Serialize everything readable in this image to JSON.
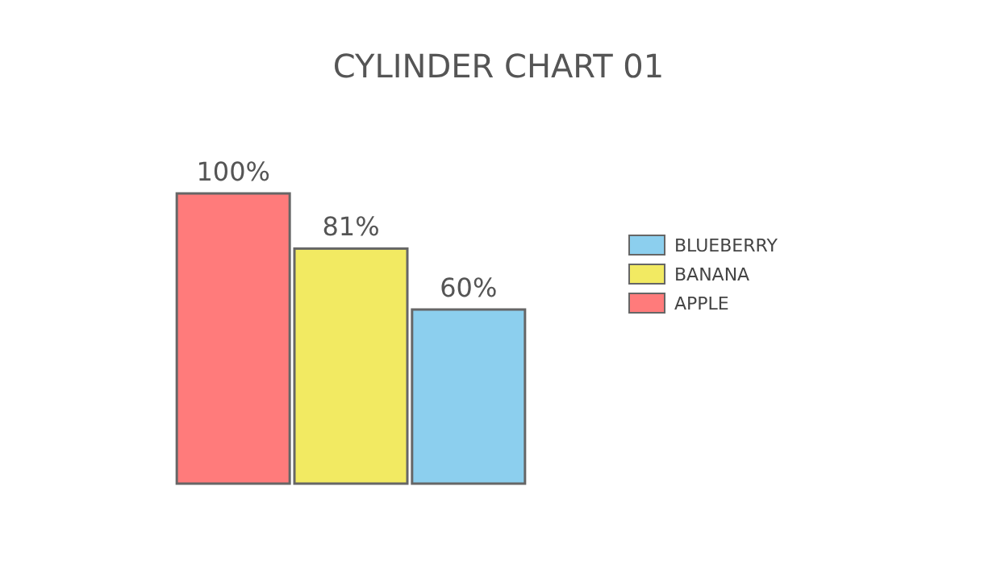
{
  "chart_data": {
    "type": "bar",
    "title": "CYLINDER CHART 01",
    "categories": [
      null
    ],
    "series": [
      {
        "name": "APPLE",
        "color": "#ff7b7b",
        "values": [
          100
        ],
        "value_labels": [
          "100%"
        ]
      },
      {
        "name": "BANANA",
        "color": "#f2ea62",
        "values": [
          81
        ],
        "value_labels": [
          "81%"
        ]
      },
      {
        "name": "BLUEBERRY",
        "color": "#8ccfee",
        "values": [
          60
        ],
        "value_labels": [
          "60%"
        ]
      }
    ],
    "legend": "right"
  }
}
